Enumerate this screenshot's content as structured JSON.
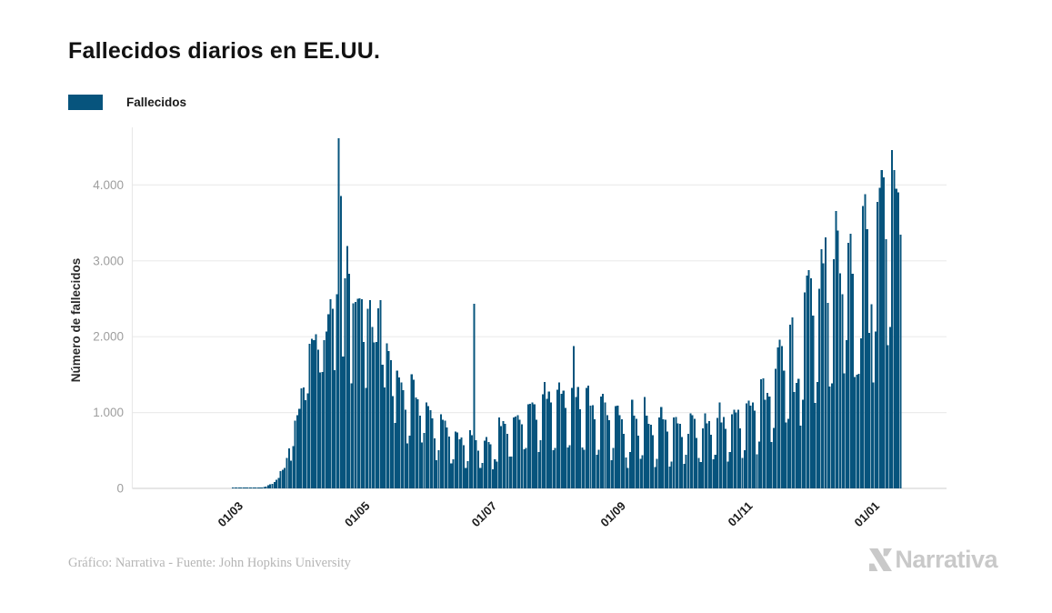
{
  "header": {
    "title": "Fallecidos diarios en EE.UU."
  },
  "legend": {
    "label": "Fallecidos"
  },
  "footer": {
    "credit": "Gráfico: Narrativa - Fuente: John Hopkins University",
    "logo_text": "Narrativa"
  },
  "colors": {
    "bar": "#07547d",
    "grid": "#ececec",
    "baseline": "#d7d7d7",
    "axis_line": "#e8e8e8",
    "ytick_text": "#9e9e9e",
    "xtick_text": "#1c1c1c",
    "ylabel_text": "#2a2a2a",
    "title_text": "#121212",
    "credit_text": "#b5b5b5",
    "logo": "#c9c9c9"
  },
  "chart_data": {
    "type": "bar",
    "title": "Fallecidos diarios en EE.UU.",
    "ylabel": "Número de fallecidos",
    "series_name": "Fallecidos",
    "start_date": "2020-01-22",
    "ylim": [
      0,
      4700
    ],
    "grid": true,
    "legend_position": "top-left",
    "yticks": [
      {
        "value": 0,
        "label": "0"
      },
      {
        "value": 1000,
        "label": "1.000"
      },
      {
        "value": 2000,
        "label": "2.000"
      },
      {
        "value": 3000,
        "label": "3.000"
      },
      {
        "value": 4000,
        "label": "4.000"
      }
    ],
    "xticks": [
      {
        "day_index": 39,
        "label": "01/03"
      },
      {
        "day_index": 100,
        "label": "01/05"
      },
      {
        "day_index": 161,
        "label": "01/07"
      },
      {
        "day_index": 223,
        "label": "01/09"
      },
      {
        "day_index": 284,
        "label": "01/11"
      },
      {
        "day_index": 345,
        "label": "01/01"
      }
    ],
    "values": [
      0,
      0,
      0,
      0,
      0,
      0,
      0,
      0,
      0,
      0,
      0,
      0,
      0,
      0,
      0,
      0,
      0,
      0,
      0,
      0,
      0,
      0,
      0,
      0,
      0,
      0,
      0,
      0,
      0,
      0,
      0,
      0,
      0,
      0,
      0,
      0,
      0,
      0,
      0,
      1,
      5,
      3,
      4,
      3,
      4,
      4,
      4,
      5,
      6,
      9,
      4,
      9,
      12,
      11,
      18,
      23,
      41,
      57,
      61,
      85,
      111,
      140,
      225,
      247,
      268,
      400,
      525,
      363,
      558,
      895,
      968,
      1049,
      1321,
      1331,
      1165,
      1255,
      1906,
      1973,
      1952,
      2035,
      1830,
      1528,
      1535,
      1957,
      2071,
      2299,
      2494,
      2367,
      1561,
      2561,
      4614,
      3857,
      1741,
      2769,
      3193,
      2830,
      1384,
      2443,
      2458,
      2502,
      2505,
      2497,
      1929,
      1324,
      2371,
      2483,
      2129,
      1926,
      1933,
      2372,
      2480,
      1631,
      1332,
      1913,
      1808,
      1693,
      1218,
      865,
      1552,
      1461,
      1394,
      1293,
      1035,
      592,
      693,
      1505,
      1432,
      1199,
      1175,
      960,
      605,
      730,
      1134,
      1083,
      1031,
      921,
      659,
      373,
      504,
      978,
      906,
      891,
      802,
      683,
      330,
      383,
      751,
      738,
      649,
      673,
      570,
      267,
      358,
      766,
      700,
      2437,
      637,
      500,
      271,
      335,
      632,
      679,
      613,
      584,
      254,
      386,
      351,
      936,
      824,
      886,
      852,
      720,
      421,
      420,
      935,
      947,
      963,
      908,
      846,
      513,
      533,
      1107,
      1113,
      1135,
      1108,
      905,
      481,
      636,
      1240,
      1403,
      1180,
      1277,
      1135,
      506,
      532,
      1302,
      1398,
      1247,
      1290,
      1064,
      539,
      572,
      1327,
      1877,
      1205,
      1336,
      1044,
      537,
      509,
      1326,
      1356,
      1090,
      1096,
      912,
      443,
      512,
      1212,
      1250,
      1132,
      963,
      902,
      369,
      532,
      1085,
      1089,
      968,
      914,
      721,
      408,
      268,
      481,
      1169,
      960,
      917,
      696,
      389,
      437,
      1203,
      957,
      853,
      839,
      704,
      279,
      388,
      933,
      1075,
      911,
      908,
      750,
      290,
      354,
      937,
      941,
      860,
      849,
      679,
      326,
      441,
      718,
      989,
      966,
      919,
      668,
      404,
      347,
      791,
      987,
      859,
      888,
      706,
      383,
      446,
      927,
      1131,
      867,
      943,
      786,
      351,
      477,
      976,
      1036,
      1001,
      1035,
      789,
      403,
      505,
      1122,
      1157,
      1090,
      1136,
      1025,
      448,
      620,
      1441,
      1453,
      1170,
      1258,
      1210,
      613,
      795,
      1576,
      1857,
      1962,
      1878,
      1554,
      869,
      917,
      2157,
      2255,
      1273,
      1390,
      1446,
      826,
      1172,
      2581,
      2804,
      2879,
      2768,
      2276,
      1128,
      1404,
      2634,
      3152,
      2966,
      3309,
      2444,
      1340,
      1386,
      3019,
      3656,
      3398,
      2838,
      2562,
      1515,
      1955,
      3239,
      3359,
      2827,
      1468,
      1499,
      1511,
      1977,
      3725,
      3880,
      3419,
      2051,
      2430,
      1394,
      2067,
      3775,
      3964,
      4194,
      4101,
      3287,
      1890,
      2126,
      4462,
      4197,
      3951,
      3900,
      3344
    ]
  }
}
